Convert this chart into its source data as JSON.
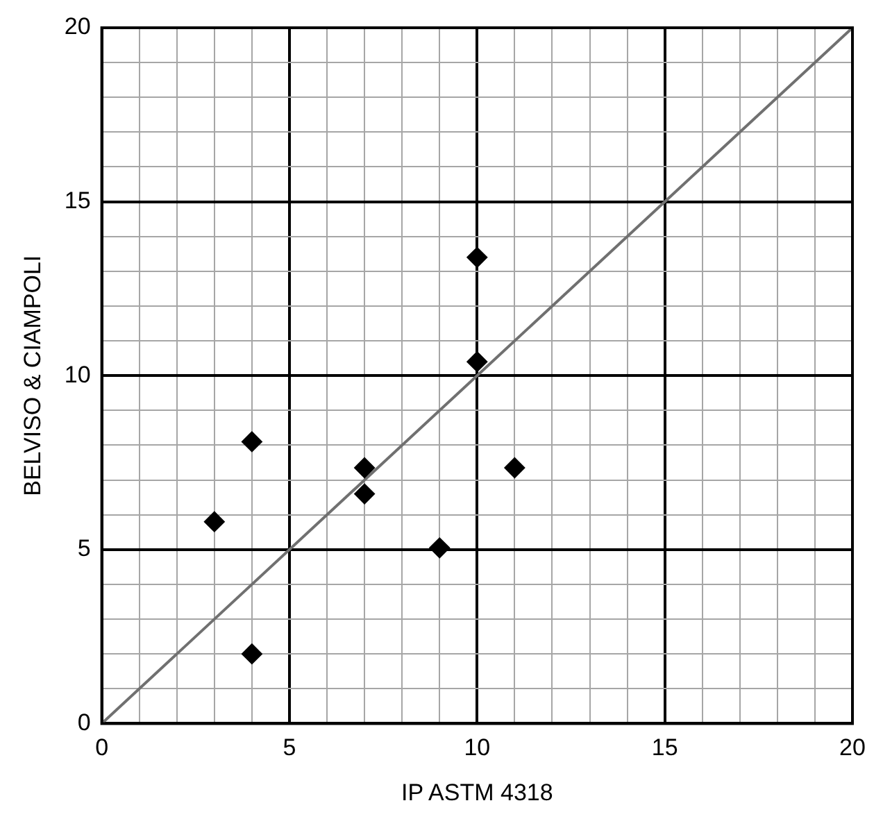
{
  "chart_data": {
    "type": "scatter",
    "xlabel": "IP ASTM 4318",
    "ylabel": "BELVISO & CIAMPOLI",
    "xlim": [
      0,
      20
    ],
    "ylim": [
      0,
      20
    ],
    "xticks": [
      0,
      {
        "value": 1,
        "label": null
      },
      {
        "value": 2,
        "label": null
      },
      {
        "value": 3,
        "label": null
      },
      {
        "value": 4,
        "label": null
      },
      5,
      {
        "value": 6,
        "label": null
      },
      {
        "value": 7,
        "label": null
      },
      {
        "value": 8,
        "label": null
      },
      {
        "value": 9,
        "label": null
      },
      10,
      {
        "value": 11,
        "label": null
      },
      {
        "value": 12,
        "label": null
      },
      {
        "value": 13,
        "label": null
      },
      {
        "value": 14,
        "label": null
      },
      15,
      {
        "value": 16,
        "label": null
      },
      {
        "value": 17,
        "label": null
      },
      {
        "value": 18,
        "label": null
      },
      {
        "value": 19,
        "label": null
      },
      20
    ],
    "yticks": [
      0,
      {
        "value": 1,
        "label": null
      },
      {
        "value": 2,
        "label": null
      },
      {
        "value": 3,
        "label": null
      },
      {
        "value": 4,
        "label": null
      },
      5,
      {
        "value": 6,
        "label": null
      },
      {
        "value": 7,
        "label": null
      },
      {
        "value": 8,
        "label": null
      },
      {
        "value": 9,
        "label": null
      },
      10,
      {
        "value": 11,
        "label": null
      },
      {
        "value": 12,
        "label": null
      },
      {
        "value": 13,
        "label": null
      },
      {
        "value": 14,
        "label": null
      },
      15,
      {
        "value": 16,
        "label": null
      },
      {
        "value": 17,
        "label": null
      },
      {
        "value": 18,
        "label": null
      },
      {
        "value": 19,
        "label": null
      },
      20
    ],
    "grid": true,
    "legend": false,
    "marker": "diamond",
    "series": [
      {
        "type": "line",
        "marker": "none",
        "color": "#707070",
        "x": [
          0,
          20
        ],
        "values": [
          0,
          20
        ]
      },
      {
        "color": "#000000",
        "x": [
          3,
          4,
          4,
          7,
          7,
          9,
          10,
          10,
          11
        ],
        "values": [
          5.8,
          8.1,
          2.0,
          7.35,
          6.6,
          5.05,
          13.4,
          10.4,
          7.35
        ]
      }
    ]
  }
}
